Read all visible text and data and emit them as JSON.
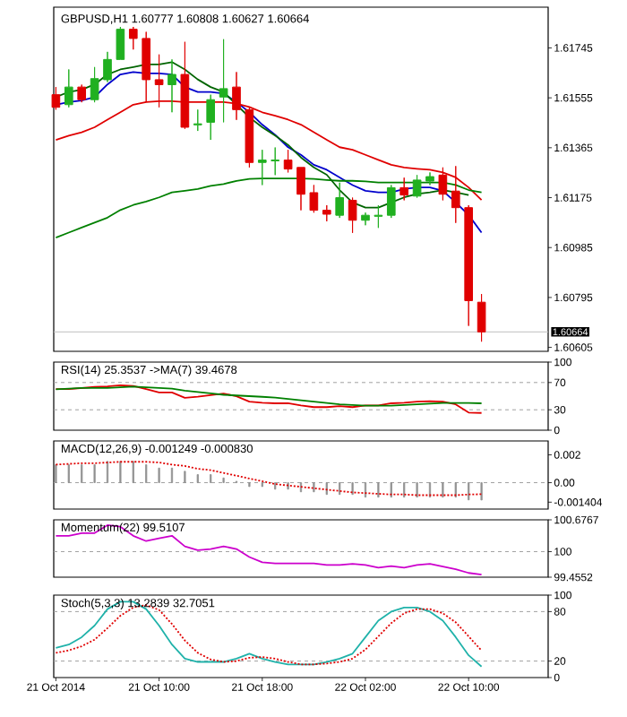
{
  "chart_data": [
    {
      "type": "candlestick",
      "title": "GBPUSD,H1 1.60777 1.60808 1.60627 1.60664",
      "tick_labels": "y",
      "x": [
        "2014-10-21T02:00",
        "2014-10-21T03:00",
        "2014-10-21T04:00",
        "2014-10-21T05:00",
        "2014-10-21T06:00",
        "2014-10-21T07:00",
        "2014-10-21T08:00",
        "2014-10-21T09:00",
        "2014-10-21T10:00",
        "2014-10-21T11:00",
        "2014-10-21T12:00",
        "2014-10-21T13:00",
        "2014-10-21T14:00",
        "2014-10-21T15:00",
        "2014-10-21T16:00",
        "2014-10-21T17:00",
        "2014-10-21T18:00",
        "2014-10-21T19:00",
        "2014-10-21T20:00",
        "2014-10-21T21:00",
        "2014-10-21T22:00",
        "2014-10-21T23:00",
        "2014-10-22T00:00",
        "2014-10-22T01:00",
        "2014-10-22T02:00",
        "2014-10-22T03:00",
        "2014-10-22T04:00",
        "2014-10-22T05:00",
        "2014-10-22T06:00",
        "2014-10-22T07:00",
        "2014-10-22T08:00",
        "2014-10-22T09:00",
        "2014-10-22T10:00",
        "2014-10-22T11:00"
      ],
      "ohlc": [
        [
          1.61567,
          1.61596,
          1.6151,
          1.61519
        ],
        [
          1.61529,
          1.61663,
          1.61519,
          1.61596
        ],
        [
          1.61596,
          1.61605,
          1.61538,
          1.61548
        ],
        [
          1.61548,
          1.61672,
          1.61538,
          1.61628
        ],
        [
          1.61624,
          1.6173,
          1.61615,
          1.61701
        ],
        [
          1.61701,
          1.61825,
          1.61701,
          1.61816
        ],
        [
          1.61816,
          1.61825,
          1.61739,
          1.61781
        ],
        [
          1.61781,
          1.61806,
          1.61538,
          1.61624
        ],
        [
          1.61624,
          1.6172,
          1.61519,
          1.61605
        ],
        [
          1.61605,
          1.61701,
          1.615,
          1.61644
        ],
        [
          1.61644,
          1.61768,
          1.61437,
          1.61443
        ],
        [
          1.61452,
          1.6151,
          1.61429,
          1.61456
        ],
        [
          1.61462,
          1.61567,
          1.61395,
          1.61548
        ],
        [
          1.61558,
          1.61778,
          1.61462,
          1.6159
        ],
        [
          1.61596,
          1.61653,
          1.61471,
          1.6151
        ],
        [
          1.6151,
          1.61519,
          1.6129,
          1.61309
        ],
        [
          1.61309,
          1.61357,
          1.61223,
          1.61318
        ],
        [
          1.61315,
          1.61366,
          1.61261,
          1.61318
        ],
        [
          1.61318,
          1.61357,
          1.61271,
          1.61284
        ],
        [
          1.6129,
          1.6129,
          1.61127,
          1.61188
        ],
        [
          1.61194,
          1.61223,
          1.61118,
          1.61127
        ],
        [
          1.61127,
          1.61146,
          1.61085,
          1.61112
        ],
        [
          1.61108,
          1.61232,
          1.61098,
          1.61175
        ],
        [
          1.61165,
          1.61175,
          1.61041,
          1.61089
        ],
        [
          1.61089,
          1.61118,
          1.6107,
          1.61108
        ],
        [
          1.61104,
          1.61146,
          1.6106,
          1.61108
        ],
        [
          1.61108,
          1.61223,
          1.61098,
          1.61213
        ],
        [
          1.61213,
          1.61251,
          1.61165,
          1.61185
        ],
        [
          1.61181,
          1.61261,
          1.61175,
          1.61242
        ],
        [
          1.61238,
          1.61271,
          1.61223,
          1.61255
        ],
        [
          1.61261,
          1.6129,
          1.61165,
          1.61188
        ],
        [
          1.612,
          1.61295,
          1.61079,
          1.61137
        ],
        [
          1.61137,
          1.61146,
          1.60687,
          1.60783
        ],
        [
          1.60777,
          1.60808,
          1.60627,
          1.60664
        ]
      ],
      "colors": [
        "#e00000",
        "#20b020",
        "#e00000",
        "#20b020",
        "#20b020",
        "#20b020",
        "#e00000",
        "#e00000",
        "#e00000",
        "#20b020",
        "#e00000",
        "#20b020",
        "#20b020",
        "#20b020",
        "#e00000",
        "#e00000",
        "#20b020",
        "#20b020",
        "#e00000",
        "#e00000",
        "#e00000",
        "#e00000",
        "#20b020",
        "#e00000",
        "#20b020",
        "#20b020",
        "#20b020",
        "#e00000",
        "#20b020",
        "#20b020",
        "#e00000",
        "#e00000",
        "#e00000",
        "#e00000"
      ],
      "series": [
        {
          "type": "line",
          "color": "#0000cc",
          "values": [
            1.61529,
            1.61539,
            1.61545,
            1.61558,
            1.61606,
            1.61644,
            1.61653,
            1.61648,
            1.61648,
            1.61644,
            1.61596,
            1.61577,
            1.61577,
            1.61571,
            1.61539,
            1.615,
            1.61453,
            1.61414,
            1.61367,
            1.61338,
            1.613,
            1.61281,
            1.61252,
            1.61223,
            1.61201,
            1.61195,
            1.61195,
            1.61208,
            1.61214,
            1.61214,
            1.61201,
            1.61157,
            1.61109,
            1.61042
          ]
        },
        {
          "type": "line",
          "color": "#e00000",
          "values": [
            1.61395,
            1.61411,
            1.61424,
            1.61443,
            1.61472,
            1.615,
            1.61529,
            1.61539,
            1.61542,
            1.61542,
            1.61539,
            1.61539,
            1.61539,
            1.61539,
            1.61533,
            1.6152,
            1.615,
            1.61487,
            1.61472,
            1.61453,
            1.61424,
            1.61395,
            1.61367,
            1.61357,
            1.61338,
            1.61319,
            1.613,
            1.6129,
            1.61285,
            1.61281,
            1.61271,
            1.61252,
            1.61214,
            1.61166
          ]
        },
        {
          "type": "line",
          "color": "#008000",
          "values": [
            1.61023,
            1.61042,
            1.61061,
            1.6108,
            1.61099,
            1.61128,
            1.61147,
            1.6116,
            1.61176,
            1.61195,
            1.61201,
            1.61208,
            1.6122,
            1.61227,
            1.61239,
            1.61246,
            1.61248,
            1.61248,
            1.61248,
            1.61248,
            1.61246,
            1.61242,
            1.61239,
            1.61239,
            1.61237,
            1.61233,
            1.61233,
            1.61233,
            1.61233,
            1.61233,
            1.61233,
            1.61223,
            1.61204,
            1.61195
          ]
        },
        {
          "type": "line",
          "color": "#006400",
          "values": [
            1.61558,
            1.61577,
            1.61586,
            1.61606,
            1.61644,
            1.61663,
            1.61672,
            1.61682,
            1.61682,
            1.61691,
            1.61663,
            1.61625,
            1.61596,
            1.61577,
            1.61529,
            1.61481,
            1.61443,
            1.61411,
            1.61376,
            1.61328,
            1.6129,
            1.61262,
            1.61204,
            1.61157,
            1.61137,
            1.61137,
            1.61157,
            1.61176,
            1.61189,
            1.61195,
            1.61204,
            1.61195,
            1.61185,
            null
          ]
        }
      ],
      "xlim": [
        "2014-10-21T01:50",
        "2014-10-22T16:10"
      ],
      "ylim": [
        1.6059,
        1.619
      ],
      "yticks": [
        1.60605,
        1.60795,
        1.60985,
        1.61175,
        1.61365,
        1.61555,
        1.61745
      ],
      "ref_lines": [
        {
          "axis": "y",
          "value": 1.60664,
          "label": "1.60664",
          "color": "#c0c0c0",
          "line_style": "solid"
        }
      ]
    },
    {
      "type": "line",
      "title": "RSI(14) 25.3537 ->MA(7) 39.4678",
      "tick_labels": "y",
      "x": [
        "2014-10-21T02:00",
        "2014-10-21T03:00",
        "2014-10-21T04:00",
        "2014-10-21T05:00",
        "2014-10-21T06:00",
        "2014-10-21T07:00",
        "2014-10-21T08:00",
        "2014-10-21T09:00",
        "2014-10-21T10:00",
        "2014-10-21T11:00",
        "2014-10-21T12:00",
        "2014-10-21T13:00",
        "2014-10-21T14:00",
        "2014-10-21T15:00",
        "2014-10-21T16:00",
        "2014-10-21T17:00",
        "2014-10-21T18:00",
        "2014-10-21T19:00",
        "2014-10-21T20:00",
        "2014-10-21T21:00",
        "2014-10-21T22:00",
        "2014-10-21T23:00",
        "2014-10-22T00:00",
        "2014-10-22T01:00",
        "2014-10-22T02:00",
        "2014-10-22T03:00",
        "2014-10-22T04:00",
        "2014-10-22T05:00",
        "2014-10-22T06:00",
        "2014-10-22T07:00",
        "2014-10-22T08:00",
        "2014-10-22T09:00",
        "2014-10-22T10:00",
        "2014-10-22T11:00"
      ],
      "series": [
        {
          "color": "#e00000",
          "values": [
            60.3,
            60.3,
            61.9,
            63.5,
            64.3,
            65.9,
            65.1,
            60.3,
            55.5,
            55.5,
            47.5,
            49.1,
            51.5,
            53.9,
            49.9,
            41.9,
            40.3,
            39.5,
            39.5,
            36.3,
            33.9,
            33.9,
            35.5,
            33.9,
            36.3,
            36.3,
            39.5,
            40.3,
            41.9,
            42.7,
            41.9,
            37.9,
            25.9,
            25.35
          ]
        },
        {
          "color": "#008000",
          "values": [
            60,
            61,
            62,
            62,
            62,
            63,
            64,
            63,
            62,
            61,
            58,
            56,
            54,
            52,
            51,
            50,
            49,
            48,
            46,
            44,
            42,
            40,
            38,
            37,
            36,
            36,
            36,
            37,
            38,
            39,
            40,
            40,
            40,
            39.47
          ]
        }
      ],
      "xlim": [
        "2014-10-21T01:50",
        "2014-10-22T16:10"
      ],
      "ylim": [
        0,
        100
      ],
      "yticks": [
        0,
        30,
        70,
        100
      ],
      "ref_lines": [
        {
          "axis": "y",
          "value": 70,
          "color": "#a0a0a0",
          "line_style": "dashed"
        },
        {
          "axis": "y",
          "value": 30,
          "color": "#a0a0a0",
          "line_style": "dashed"
        }
      ]
    },
    {
      "type": "bar",
      "title": "MACD(12,26,9) -0.001249 -0.000830",
      "tick_labels": "y",
      "x": [
        "2014-10-21T02:00",
        "2014-10-21T03:00",
        "2014-10-21T04:00",
        "2014-10-21T05:00",
        "2014-10-21T06:00",
        "2014-10-21T07:00",
        "2014-10-21T08:00",
        "2014-10-21T09:00",
        "2014-10-21T10:00",
        "2014-10-21T11:00",
        "2014-10-21T12:00",
        "2014-10-21T13:00",
        "2014-10-21T14:00",
        "2014-10-21T15:00",
        "2014-10-21T16:00",
        "2014-10-21T17:00",
        "2014-10-21T18:00",
        "2014-10-21T19:00",
        "2014-10-21T20:00",
        "2014-10-21T21:00",
        "2014-10-21T22:00",
        "2014-10-21T23:00",
        "2014-10-22T00:00",
        "2014-10-22T01:00",
        "2014-10-22T02:00",
        "2014-10-22T03:00",
        "2014-10-22T04:00",
        "2014-10-22T05:00",
        "2014-10-22T06:00",
        "2014-10-22T07:00",
        "2014-10-22T08:00",
        "2014-10-22T09:00",
        "2014-10-22T10:00",
        "2014-10-22T11:00"
      ],
      "series": [
        {
          "type": "bar",
          "color": "#909090",
          "values": [
            0.00129,
            0.00129,
            0.00129,
            0.00129,
            0.00153,
            0.00153,
            0.00153,
            0.00129,
            0.00105,
            0.00105,
            0.00082,
            0.00058,
            0.00058,
            0.00034,
            0.0001,
            -0.00028,
            -0.00028,
            -0.00047,
            -0.00047,
            -0.00066,
            -0.00066,
            -0.00085,
            -0.00085,
            -0.00085,
            -0.00104,
            -0.00104,
            -0.00104,
            -0.00104,
            -0.00104,
            -0.00104,
            -0.00104,
            -0.00104,
            -0.00124,
            -0.001249
          ]
        },
        {
          "type": "line",
          "color": "#e00000",
          "line_style": "dotted",
          "values": [
            0.0013,
            0.00135,
            0.0014,
            0.0014,
            0.00145,
            0.0015,
            0.0015,
            0.0015,
            0.00145,
            0.0013,
            0.0012,
            0.001,
            0.0009,
            0.0007,
            0.0005,
            0.0003,
            0.0001,
            -0.0001,
            -0.0002,
            -0.0003,
            -0.0004,
            -0.0005,
            -0.0006,
            -0.0007,
            -0.00075,
            -0.0008,
            -0.00085,
            -0.00085,
            -0.0009,
            -0.0009,
            -0.0009,
            -0.0009,
            -0.00085,
            -0.00083
          ]
        }
      ],
      "xlim": [
        "2014-10-21T01:50",
        "2014-10-22T16:10"
      ],
      "ylim": [
        -0.0019,
        0.003
      ],
      "yticks": [
        -0.001404,
        {
          "value": 0,
          "label": "0.00"
        },
        0.002
      ],
      "ref_lines": [
        {
          "axis": "y",
          "value": 0,
          "color": "#a0a0a0",
          "line_style": "dashed"
        }
      ]
    },
    {
      "type": "line",
      "title": "Momentum(22) 99.5107",
      "tick_labels": "y",
      "x": [
        "2014-10-21T02:00",
        "2014-10-21T03:00",
        "2014-10-21T04:00",
        "2014-10-21T05:00",
        "2014-10-21T06:00",
        "2014-10-21T07:00",
        "2014-10-21T08:00",
        "2014-10-21T09:00",
        "2014-10-21T10:00",
        "2014-10-21T11:00",
        "2014-10-21T12:00",
        "2014-10-21T13:00",
        "2014-10-21T14:00",
        "2014-10-21T15:00",
        "2014-10-21T16:00",
        "2014-10-21T17:00",
        "2014-10-21T18:00",
        "2014-10-21T19:00",
        "2014-10-21T20:00",
        "2014-10-21T21:00",
        "2014-10-21T22:00",
        "2014-10-21T23:00",
        "2014-10-22T00:00",
        "2014-10-22T01:00",
        "2014-10-22T02:00",
        "2014-10-22T03:00",
        "2014-10-22T04:00",
        "2014-10-22T05:00",
        "2014-10-22T06:00",
        "2014-10-22T07:00",
        "2014-10-22T08:00",
        "2014-10-22T09:00",
        "2014-10-22T10:00",
        "2014-10-22T11:00"
      ],
      "series": [
        {
          "color": "#cc00cc",
          "values": [
            100.337,
            100.337,
            100.394,
            100.394,
            100.564,
            100.53,
            100.337,
            100.224,
            100.281,
            100.337,
            100.111,
            100.032,
            100.055,
            100.111,
            100.055,
            99.885,
            99.772,
            99.749,
            99.749,
            99.749,
            99.749,
            99.715,
            99.715,
            99.738,
            99.715,
            99.659,
            99.693,
            99.659,
            99.715,
            99.738,
            99.681,
            99.625,
            99.546,
            99.5107
          ]
        }
      ],
      "xlim": [
        "2014-10-21T01:50",
        "2014-10-22T16:10"
      ],
      "ylim": [
        99.4552,
        100.6767
      ],
      "yticks": [
        99.4552,
        100,
        100.6767
      ],
      "ref_lines": [
        {
          "axis": "y",
          "value": 100,
          "color": "#a0a0a0",
          "line_style": "dashed"
        }
      ]
    },
    {
      "type": "line",
      "title": "Stoch(5,3,3) 13.2839 32.7051",
      "x": [
        "2014-10-21T02:00",
        "2014-10-21T03:00",
        "2014-10-21T04:00",
        "2014-10-21T05:00",
        "2014-10-21T06:00",
        "2014-10-21T07:00",
        "2014-10-21T08:00",
        "2014-10-21T09:00",
        "2014-10-21T10:00",
        "2014-10-21T11:00",
        "2014-10-21T12:00",
        "2014-10-21T13:00",
        "2014-10-21T14:00",
        "2014-10-21T15:00",
        "2014-10-21T16:00",
        "2014-10-21T17:00",
        "2014-10-21T18:00",
        "2014-10-21T19:00",
        "2014-10-21T20:00",
        "2014-10-21T21:00",
        "2014-10-21T22:00",
        "2014-10-21T23:00",
        "2014-10-22T00:00",
        "2014-10-22T01:00",
        "2014-10-22T02:00",
        "2014-10-22T03:00",
        "2014-10-22T04:00",
        "2014-10-22T05:00",
        "2014-10-22T06:00",
        "2014-10-22T07:00",
        "2014-10-22T08:00",
        "2014-10-22T09:00",
        "2014-10-22T10:00",
        "2014-10-22T11:00"
      ],
      "series": [
        {
          "color": "#20b2aa",
          "values": [
            36,
            40,
            49,
            63,
            83,
            92,
            92,
            83,
            63,
            40,
            23,
            19,
            19,
            19,
            23,
            29,
            23,
            19,
            16,
            16,
            16,
            19,
            23,
            29,
            49,
            69,
            80,
            85,
            85,
            80,
            69,
            49,
            27,
            13.28
          ]
        },
        {
          "color": "#e00000",
          "line_style": "dotted",
          "values": [
            30,
            33,
            38,
            46,
            60,
            75,
            85,
            88,
            82,
            65,
            45,
            30,
            22,
            19,
            20,
            24,
            25,
            23,
            19,
            16,
            16,
            17,
            19,
            23,
            34,
            50,
            66,
            78,
            83,
            83,
            78,
            67,
            50,
            32.71
          ]
        }
      ],
      "xlim": [
        "2014-10-21T01:50",
        "2014-10-22T16:10"
      ],
      "ylim": [
        0,
        100
      ],
      "yticks": [
        0,
        20,
        80,
        100
      ],
      "xticks": [
        {
          "value": "2014-10-21T02:00",
          "label": "21 Oct 2014"
        },
        {
          "value": "2014-10-21T10:00",
          "label": "21 Oct 10:00"
        },
        {
          "value": "2014-10-21T18:00",
          "label": "21 Oct 18:00"
        },
        {
          "value": "2014-10-22T02:00",
          "label": "22 Oct 02:00"
        },
        {
          "value": "2014-10-22T10:00",
          "label": "22 Oct 10:00"
        }
      ],
      "ref_lines": [
        {
          "axis": "y",
          "value": 80,
          "color": "#a0a0a0",
          "line_style": "dashed"
        },
        {
          "axis": "y",
          "value": 20,
          "color": "#a0a0a0",
          "line_style": "dashed"
        }
      ]
    }
  ]
}
